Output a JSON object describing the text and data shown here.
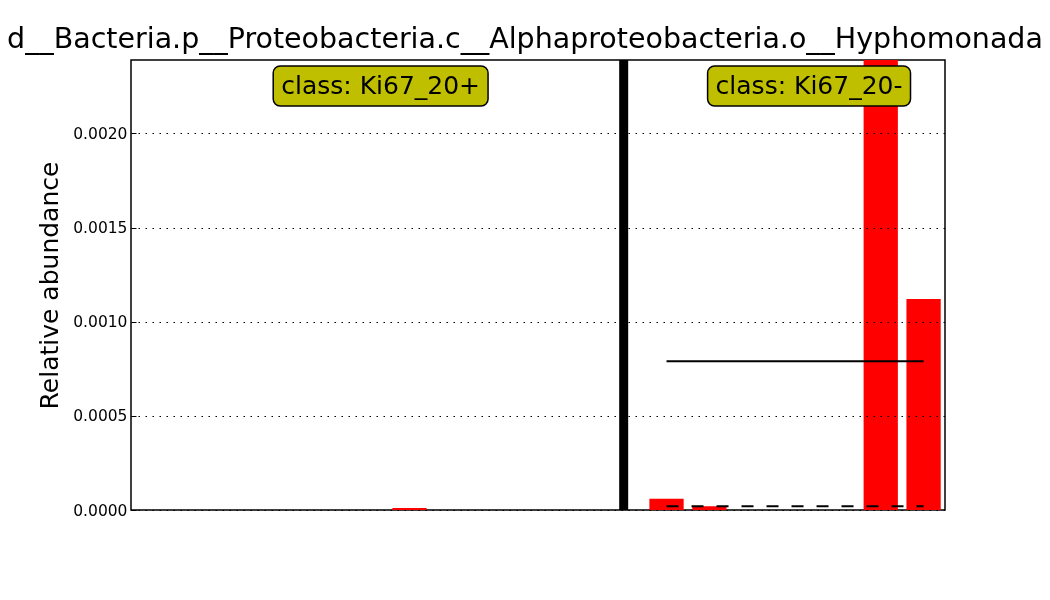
{
  "chart_data": {
    "type": "bar",
    "title": "d__Bacteria.p__Proteobacteria.c__Alphaproteobacteria.o__Hyphomonada",
    "ylabel": "Relative abundance",
    "categories": [
      null,
      null,
      null,
      null,
      null,
      null,
      null,
      null,
      null,
      null,
      null,
      null,
      null,
      null,
      null,
      null,
      null,
      null,
      null
    ],
    "series": [
      {
        "color": "#ff0000",
        "values": [
          0,
          0,
          0,
          0,
          0,
          0,
          1e-05,
          0,
          0,
          0,
          0,
          null,
          null,
          null,
          null,
          null,
          null,
          null,
          null
        ]
      },
      {
        "color": "#ff0000",
        "values": [
          null,
          null,
          null,
          null,
          null,
          null,
          null,
          null,
          null,
          null,
          null,
          null,
          6e-05,
          2e-05,
          0,
          0,
          0,
          0.00239,
          0.00112
        ]
      },
      {
        "type": "line",
        "color": "#000000",
        "line_style": "solid",
        "values": [
          null,
          null,
          null,
          null,
          null,
          null,
          null,
          null,
          null,
          null,
          null,
          null,
          0.00079,
          0.00079,
          0.00079,
          0.00079,
          0.00079,
          0.00079,
          0.00079
        ]
      },
      {
        "type": "line",
        "color": "#000000",
        "line_style": "dashed",
        "values": [
          null,
          null,
          null,
          null,
          null,
          null,
          null,
          null,
          null,
          null,
          null,
          null,
          2e-05,
          2e-05,
          2e-05,
          2e-05,
          2e-05,
          2e-05,
          2e-05
        ]
      }
    ],
    "ylim": [
      0,
      0.00239
    ],
    "yticks": [
      {
        "value": 0,
        "label": "0.0000"
      },
      0.0005,
      {
        "value": 0.001,
        "label": "0.0010"
      },
      0.0015,
      {
        "value": 0.002,
        "label": "0.0020"
      }
    ],
    "grid": "y",
    "annotations": [
      "class: Ki67_20+",
      "class: Ki67_20-"
    ]
  }
}
